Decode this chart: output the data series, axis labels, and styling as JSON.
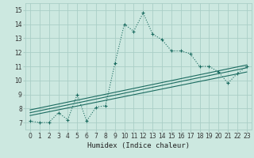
{
  "xlabel": "Humidex (Indice chaleur)",
  "bg_color": "#cce8e0",
  "grid_color": "#aacec6",
  "line_color": "#1a6b60",
  "xlim": [
    -0.5,
    23.5
  ],
  "ylim": [
    6.5,
    15.5
  ],
  "xticks": [
    0,
    1,
    2,
    3,
    4,
    5,
    6,
    7,
    8,
    9,
    10,
    11,
    12,
    13,
    14,
    15,
    16,
    17,
    18,
    19,
    20,
    21,
    22,
    23
  ],
  "yticks": [
    7,
    8,
    9,
    10,
    11,
    12,
    13,
    14,
    15
  ],
  "s1_x": [
    0,
    1,
    2,
    3,
    4,
    5,
    6,
    7,
    8,
    9,
    10,
    11,
    12,
    13,
    14,
    15,
    16,
    17,
    18,
    19,
    20,
    21,
    22,
    23
  ],
  "s1_y": [
    7.1,
    7.0,
    7.0,
    7.7,
    7.2,
    9.0,
    7.1,
    8.1,
    8.2,
    11.2,
    14.0,
    13.5,
    14.8,
    13.3,
    12.9,
    12.1,
    12.1,
    11.9,
    11.0,
    11.0,
    10.6,
    9.8,
    10.5,
    11.0
  ],
  "trend1_x": [
    0,
    23
  ],
  "trend1_y": [
    7.5,
    10.6
  ],
  "trend2_x": [
    0,
    23
  ],
  "trend2_y": [
    7.7,
    10.9
  ],
  "trend3_x": [
    0,
    23
  ],
  "trend3_y": [
    7.9,
    11.1
  ]
}
